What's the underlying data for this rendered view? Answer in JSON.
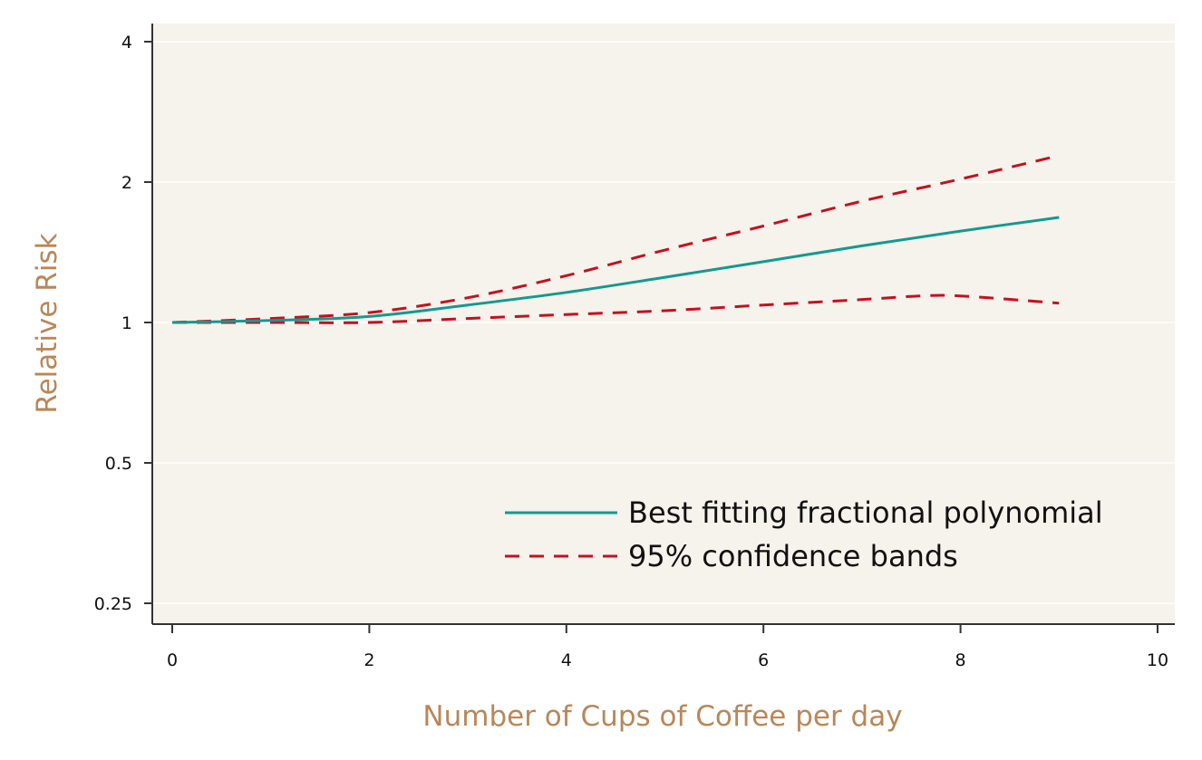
{
  "chart_data": {
    "type": "line",
    "title": "",
    "xlabel": "Number of Cups of Coffee per day",
    "ylabel": "Relative Risk",
    "xlim": [
      0,
      10
    ],
    "ylim": [
      0.25,
      4
    ],
    "y_scale": "log2",
    "grid": true,
    "legend_position": "bottom-right",
    "x_ticks": [
      0,
      2,
      4,
      6,
      8,
      10
    ],
    "x_tick_labels": [
      "0",
      "2",
      "4",
      "6",
      "8",
      "10"
    ],
    "y_ticks": [
      0.25,
      0.5,
      1,
      2,
      4
    ],
    "y_tick_labels": [
      "0.25",
      "0.5",
      "1",
      "2",
      "4"
    ],
    "series": [
      {
        "name": "Best fitting fractional polynomial",
        "style": "solid",
        "color": "#14998f",
        "x": [
          0,
          1,
          2,
          3,
          4,
          5,
          6,
          7,
          8,
          9
        ],
        "y": [
          1.0,
          1.01,
          1.03,
          1.09,
          1.16,
          1.25,
          1.35,
          1.46,
          1.57,
          1.68
        ]
      },
      {
        "name": "95% confidence bands",
        "style": "dashed",
        "color": "#c1121f",
        "x": [
          0,
          1,
          2,
          3,
          4,
          5,
          6,
          7,
          8,
          9
        ],
        "y": [
          1.0,
          1.02,
          1.05,
          1.13,
          1.26,
          1.43,
          1.61,
          1.82,
          2.03,
          2.28
        ]
      },
      {
        "name": "95% confidence bands",
        "style": "dashed",
        "color": "#c1121f",
        "x": [
          0,
          1,
          2,
          3,
          4,
          5,
          6,
          7,
          7.6,
          8,
          9
        ],
        "y": [
          1.0,
          1.0,
          1.0,
          1.02,
          1.04,
          1.06,
          1.09,
          1.12,
          1.14,
          1.14,
          1.1
        ]
      }
    ],
    "legend": [
      {
        "label": "Best fitting fractional polynomial",
        "style": "solid",
        "color": "#14998f"
      },
      {
        "label": "95% confidence bands",
        "style": "dashed",
        "color": "#c1121f"
      }
    ],
    "colors": {
      "plot_background": "#f6f2ec",
      "axis_title": "#b8875a",
      "gridline": "#ffffff",
      "axis": "#333333"
    }
  }
}
